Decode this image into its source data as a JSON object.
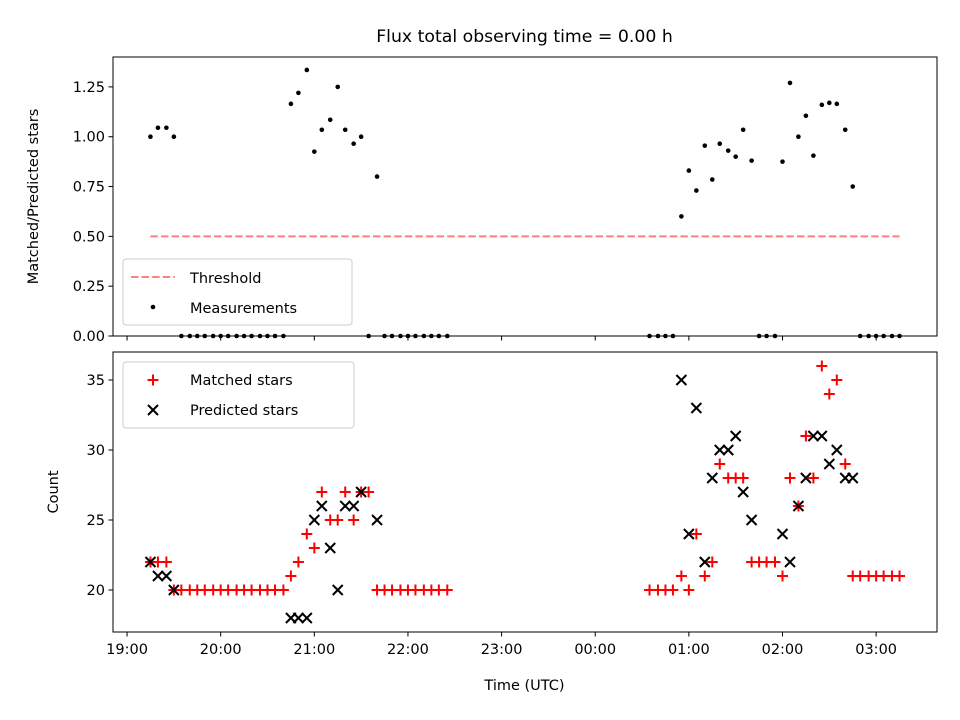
{
  "figure": {
    "title": "Flux total observing time = 0.00 h"
  },
  "chart_data": [
    {
      "type": "scatter",
      "title": "Flux total observing time = 0.00 h",
      "xlabel": "",
      "ylabel": "Matched/Predicted stars",
      "xlim": [
        18.85,
        27.65
      ],
      "ylim": [
        0,
        1.4
      ],
      "yticks": [
        0.0,
        0.25,
        0.5,
        0.75,
        1.0,
        1.25
      ],
      "ytick_labels": [
        "0.00",
        "0.25",
        "0.50",
        "0.75",
        "1.00",
        "1.25"
      ],
      "xticks": [
        19,
        20,
        21,
        22,
        23,
        24,
        25,
        26,
        27
      ],
      "legend_position": "lower left",
      "threshold": {
        "name": "Threshold",
        "value": 0.5,
        "x_range": [
          19.25,
          27.25
        ],
        "color": "#ff7f7f"
      },
      "series": [
        {
          "name": "Measurements",
          "color": "#000000",
          "marker": "dot",
          "points": [
            [
              19.25,
              1.0
            ],
            [
              19.33,
              1.045
            ],
            [
              19.42,
              1.045
            ],
            [
              19.5,
              1.0
            ],
            [
              19.58,
              0
            ],
            [
              19.67,
              0
            ],
            [
              19.75,
              0
            ],
            [
              19.83,
              0
            ],
            [
              19.92,
              0
            ],
            [
              20.0,
              0
            ],
            [
              20.08,
              0
            ],
            [
              20.17,
              0
            ],
            [
              20.25,
              0
            ],
            [
              20.33,
              0
            ],
            [
              20.42,
              0
            ],
            [
              20.5,
              0
            ],
            [
              20.58,
              0
            ],
            [
              20.67,
              0
            ],
            [
              20.75,
              1.165
            ],
            [
              20.83,
              1.22
            ],
            [
              20.92,
              1.335
            ],
            [
              21.0,
              0.925
            ],
            [
              21.08,
              1.035
            ],
            [
              21.17,
              1.085
            ],
            [
              21.25,
              1.25
            ],
            [
              21.33,
              1.035
            ],
            [
              21.42,
              0.965
            ],
            [
              21.5,
              1.0
            ],
            [
              21.58,
              0
            ],
            [
              21.67,
              0.8
            ],
            [
              21.75,
              0
            ],
            [
              21.83,
              0
            ],
            [
              21.92,
              0
            ],
            [
              22.0,
              0
            ],
            [
              22.08,
              0
            ],
            [
              22.17,
              0
            ],
            [
              22.25,
              0
            ],
            [
              22.33,
              0
            ],
            [
              22.42,
              0
            ],
            [
              24.58,
              0
            ],
            [
              24.67,
              0
            ],
            [
              24.75,
              0
            ],
            [
              24.83,
              0
            ],
            [
              24.92,
              0.6
            ],
            [
              25.0,
              0.83
            ],
            [
              25.08,
              0.73
            ],
            [
              25.17,
              0.955
            ],
            [
              25.25,
              0.785
            ],
            [
              25.33,
              0.965
            ],
            [
              25.42,
              0.93
            ],
            [
              25.5,
              0.9
            ],
            [
              25.58,
              1.035
            ],
            [
              25.67,
              0.88
            ],
            [
              25.75,
              0
            ],
            [
              25.83,
              0
            ],
            [
              25.92,
              0
            ],
            [
              26.0,
              0.875
            ],
            [
              26.08,
              1.27
            ],
            [
              26.17,
              1.0
            ],
            [
              26.25,
              1.105
            ],
            [
              26.33,
              0.905
            ],
            [
              26.42,
              1.16
            ],
            [
              26.5,
              1.17
            ],
            [
              26.58,
              1.165
            ],
            [
              26.67,
              1.035
            ],
            [
              26.75,
              0.75
            ],
            [
              26.83,
              0
            ],
            [
              26.92,
              0
            ],
            [
              27.0,
              0
            ],
            [
              27.08,
              0
            ],
            [
              27.17,
              0
            ],
            [
              27.25,
              0
            ]
          ]
        }
      ]
    },
    {
      "type": "scatter",
      "xlabel": "Time (UTC)",
      "ylabel": "Count",
      "xlim": [
        18.85,
        27.65
      ],
      "ylim": [
        17.0,
        37.0
      ],
      "yticks": [
        20,
        25,
        30,
        35
      ],
      "xticks": [
        19,
        20,
        21,
        22,
        23,
        24,
        25,
        26,
        27
      ],
      "xtick_labels": [
        "19:00",
        "20:00",
        "21:00",
        "22:00",
        "23:00",
        "00:00",
        "01:00",
        "02:00",
        "03:00"
      ],
      "legend_position": "upper left",
      "series": [
        {
          "name": "Matched stars",
          "color": "#ff0000",
          "marker": "plus",
          "points": [
            [
              19.25,
              22
            ],
            [
              19.33,
              22
            ],
            [
              19.42,
              22
            ],
            [
              19.5,
              20
            ],
            [
              19.58,
              20
            ],
            [
              19.67,
              20
            ],
            [
              19.75,
              20
            ],
            [
              19.83,
              20
            ],
            [
              19.92,
              20
            ],
            [
              20.0,
              20
            ],
            [
              20.08,
              20
            ],
            [
              20.17,
              20
            ],
            [
              20.25,
              20
            ],
            [
              20.33,
              20
            ],
            [
              20.42,
              20
            ],
            [
              20.5,
              20
            ],
            [
              20.58,
              20
            ],
            [
              20.67,
              20
            ],
            [
              20.75,
              21
            ],
            [
              20.83,
              22
            ],
            [
              20.92,
              24
            ],
            [
              21.0,
              23
            ],
            [
              21.08,
              27
            ],
            [
              21.17,
              25
            ],
            [
              21.25,
              25
            ],
            [
              21.33,
              27
            ],
            [
              21.42,
              25
            ],
            [
              21.5,
              27
            ],
            [
              21.58,
              27
            ],
            [
              21.67,
              20
            ],
            [
              21.75,
              20
            ],
            [
              21.83,
              20
            ],
            [
              21.92,
              20
            ],
            [
              22.0,
              20
            ],
            [
              22.08,
              20
            ],
            [
              22.17,
              20
            ],
            [
              22.25,
              20
            ],
            [
              22.33,
              20
            ],
            [
              22.42,
              20
            ],
            [
              24.58,
              20
            ],
            [
              24.67,
              20
            ],
            [
              24.75,
              20
            ],
            [
              24.83,
              20
            ],
            [
              24.92,
              21
            ],
            [
              25.0,
              20
            ],
            [
              25.08,
              24
            ],
            [
              25.17,
              21
            ],
            [
              25.25,
              22
            ],
            [
              25.33,
              29
            ],
            [
              25.42,
              28
            ],
            [
              25.5,
              28
            ],
            [
              25.58,
              28
            ],
            [
              25.67,
              22
            ],
            [
              25.75,
              22
            ],
            [
              25.83,
              22
            ],
            [
              25.92,
              22
            ],
            [
              26.0,
              21
            ],
            [
              26.08,
              28
            ],
            [
              26.17,
              26
            ],
            [
              26.25,
              31
            ],
            [
              26.33,
              28
            ],
            [
              26.42,
              36
            ],
            [
              26.5,
              34
            ],
            [
              26.58,
              35
            ],
            [
              26.67,
              29
            ],
            [
              26.75,
              21
            ],
            [
              26.83,
              21
            ],
            [
              26.92,
              21
            ],
            [
              27.0,
              21
            ],
            [
              27.08,
              21
            ],
            [
              27.17,
              21
            ],
            [
              27.25,
              21
            ]
          ]
        },
        {
          "name": "Predicted stars",
          "color": "#000000",
          "marker": "x",
          "points": [
            [
              19.25,
              22
            ],
            [
              19.33,
              21
            ],
            [
              19.42,
              21
            ],
            [
              19.5,
              20
            ],
            [
              20.75,
              18
            ],
            [
              20.83,
              18
            ],
            [
              20.92,
              18
            ],
            [
              21.0,
              25
            ],
            [
              21.08,
              26
            ],
            [
              21.17,
              23
            ],
            [
              21.25,
              20
            ],
            [
              21.33,
              26
            ],
            [
              21.42,
              26
            ],
            [
              21.5,
              27
            ],
            [
              21.67,
              25
            ],
            [
              24.92,
              35
            ],
            [
              25.0,
              24
            ],
            [
              25.08,
              33
            ],
            [
              25.17,
              22
            ],
            [
              25.25,
              28
            ],
            [
              25.33,
              30
            ],
            [
              25.42,
              30
            ],
            [
              25.5,
              31
            ],
            [
              25.58,
              27
            ],
            [
              25.67,
              25
            ],
            [
              26.0,
              24
            ],
            [
              26.08,
              22
            ],
            [
              26.17,
              26
            ],
            [
              26.25,
              28
            ],
            [
              26.33,
              31
            ],
            [
              26.42,
              31
            ],
            [
              26.5,
              29
            ],
            [
              26.58,
              30
            ],
            [
              26.67,
              28
            ],
            [
              26.75,
              28
            ]
          ]
        }
      ]
    }
  ]
}
